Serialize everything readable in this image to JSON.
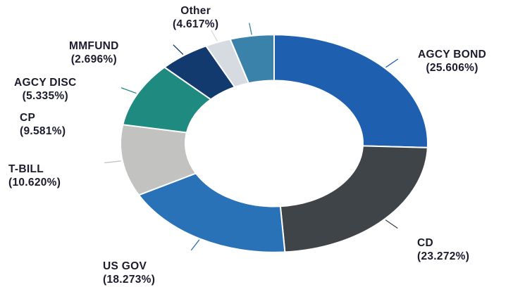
{
  "chart_data": {
    "type": "pie",
    "variant": "donut",
    "title": "",
    "legend": "none",
    "slices": [
      {
        "name": "AGCY BOND",
        "value": 25.606,
        "label": "(25.606%)",
        "color": "#1f5fb0"
      },
      {
        "name": "CD",
        "value": 23.272,
        "label": "(23.272%)",
        "color": "#3e4447"
      },
      {
        "name": "US GOV",
        "value": 18.273,
        "label": "(18.273%)",
        "color": "#2a72b8"
      },
      {
        "name": "T-BILL",
        "value": 10.62,
        "label": "(10.620%)",
        "color": "#c2c2c0"
      },
      {
        "name": "CP",
        "value": 9.581,
        "label": "(9.581%)",
        "color": "#1e8a80"
      },
      {
        "name": "AGCY DISC",
        "value": 5.335,
        "label": "(5.335%)",
        "color": "#133a6e"
      },
      {
        "name": "MMFUND",
        "value": 2.696,
        "label": "(2.696%)",
        "color": "#d5dbe1"
      },
      {
        "name": "Other",
        "value": 4.617,
        "label": "(4.617%)",
        "color": "#3b82aa"
      }
    ]
  }
}
